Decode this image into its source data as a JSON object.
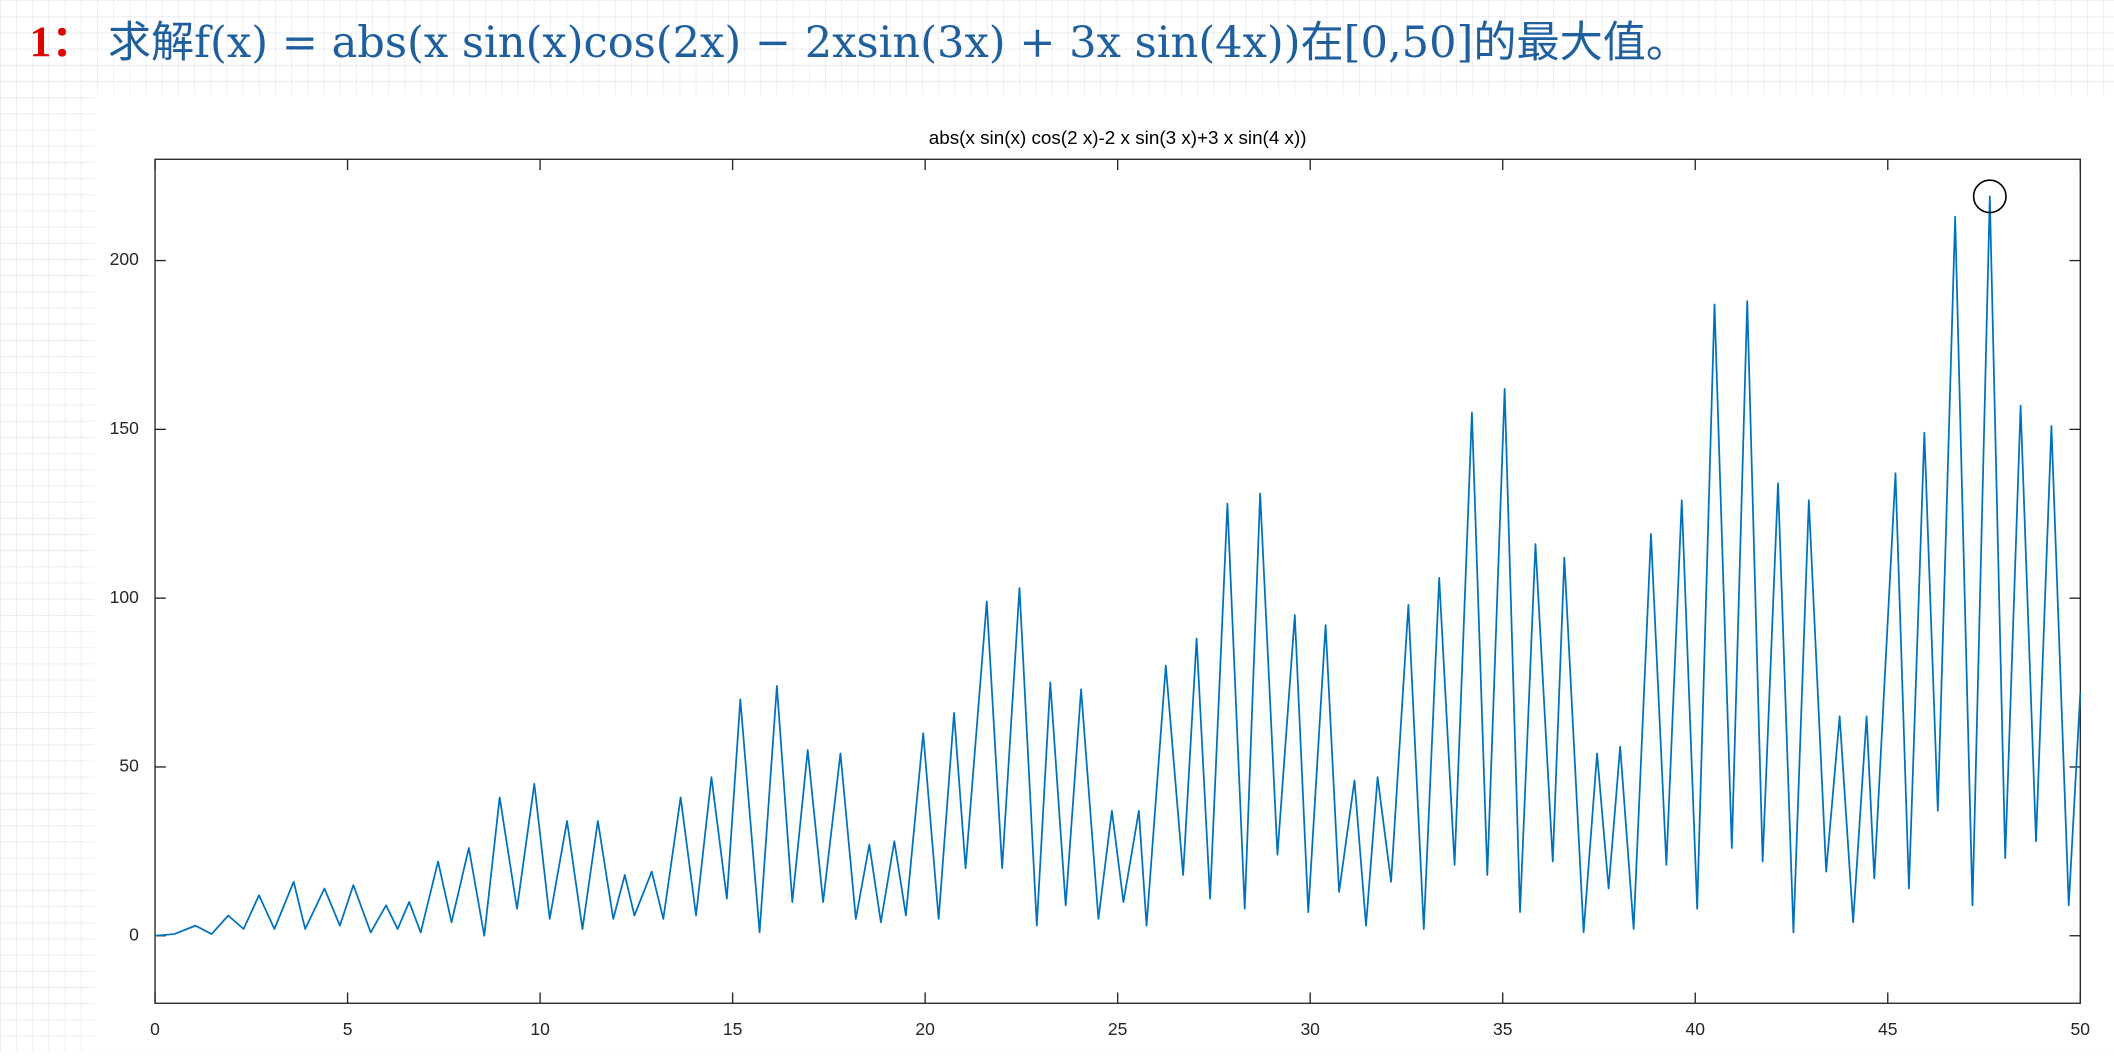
{
  "heading_number": "1：",
  "heading": "求解f(x) = abs(x sin(x)cos(2x) − 2xsin(3x) + 3x sin(4x))在[0,50]的最大值。",
  "chart_data": {
    "type": "line",
    "title": "abs(x sin(x) cos(2 x)-2 x sin(3 x)+3 x sin(4 x))",
    "color": "#0072bd",
    "x": [
      0,
      0.5,
      1.05,
      1.47,
      1.9,
      2.3,
      2.7,
      3.1,
      3.6,
      3.9,
      4.4,
      4.8,
      5.15,
      5.6,
      6.0,
      6.3,
      6.6,
      6.9,
      7.35,
      7.7,
      8.15,
      8.55,
      8.95,
      9.4,
      9.85,
      10.25,
      10.7,
      11.1,
      11.5,
      11.9,
      12.2,
      12.45,
      12.9,
      13.2,
      13.65,
      14.05,
      14.45,
      14.85,
      15.2,
      15.7,
      16.15,
      16.55,
      16.95,
      17.35,
      17.8,
      18.2,
      18.55,
      18.85,
      19.2,
      19.5,
      19.95,
      20.35,
      20.75,
      21.05,
      21.6,
      22.0,
      22.45,
      22.9,
      23.25,
      23.65,
      24.05,
      24.5,
      24.85,
      25.15,
      25.55,
      25.75,
      26.25,
      26.7,
      27.05,
      27.4,
      27.85,
      28.3,
      28.7,
      29.15,
      29.6,
      29.95,
      30.4,
      30.75,
      31.15,
      31.45,
      31.75,
      32.1,
      32.55,
      32.95,
      33.35,
      33.75,
      34.2,
      34.6,
      35.05,
      35.45,
      35.85,
      36.3,
      36.6,
      37.1,
      37.45,
      37.75,
      38.05,
      38.4,
      38.85,
      39.25,
      39.65,
      40.05,
      40.5,
      40.95,
      41.35,
      41.75,
      42.15,
      42.55,
      42.95,
      43.4,
      43.75,
      44.1,
      44.45,
      44.65,
      45.2,
      45.55,
      45.95,
      46.3,
      46.75,
      47.2,
      47.65,
      48.05,
      48.45,
      48.85,
      49.25,
      49.7,
      50
    ],
    "values": [
      0,
      0.5,
      3,
      0.5,
      6,
      2,
      12,
      2,
      16,
      2,
      14,
      3,
      15,
      1,
      9,
      2,
      10,
      1,
      22,
      4,
      26,
      0,
      41,
      8,
      45,
      5,
      34,
      2,
      34,
      5,
      18,
      6,
      19,
      5,
      41,
      6,
      47,
      11,
      70,
      1,
      74,
      10,
      55,
      10,
      54,
      5,
      27,
      4,
      28,
      6,
      60,
      5,
      66,
      20,
      99,
      20,
      103,
      3,
      75,
      9,
      73,
      5,
      37,
      10,
      37,
      3,
      80,
      18,
      88,
      11,
      128,
      8,
      131,
      24,
      95,
      7,
      92,
      13,
      46,
      3,
      47,
      16,
      98,
      2,
      106,
      21,
      155,
      18,
      162,
      7,
      116,
      22,
      112,
      1,
      54,
      14,
      56,
      2,
      119,
      21,
      129,
      8,
      187,
      26,
      188,
      22,
      134,
      1,
      129,
      19,
      65,
      4,
      65,
      17,
      137,
      14,
      149,
      37,
      213,
      9,
      219,
      23,
      157,
      28,
      151,
      9,
      72
    ],
    "max_marker": {
      "x": 47.65,
      "y": 219
    },
    "xlim": [
      0,
      50
    ],
    "ylim": [
      -20,
      230
    ],
    "xticks": [
      0,
      5,
      10,
      15,
      20,
      25,
      30,
      35,
      40,
      45,
      50
    ],
    "yticks": [
      0,
      50,
      100,
      150,
      200
    ]
  }
}
